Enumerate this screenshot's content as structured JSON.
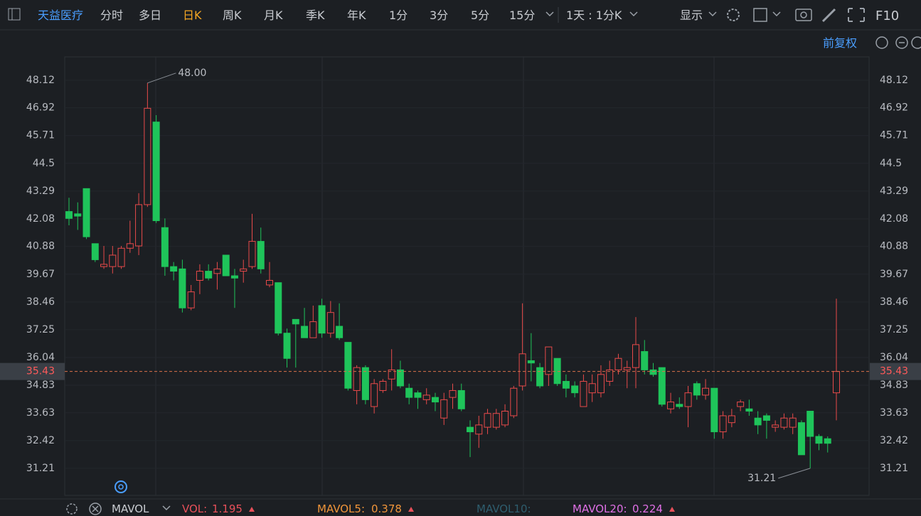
{
  "toolbar": {
    "stock": "天益医疗",
    "tabs": [
      "分时",
      "多日",
      "日K",
      "周K",
      "月K",
      "季K",
      "年K",
      "1分",
      "3分",
      "5分",
      "15分"
    ],
    "period": "1天 : 1分K",
    "display": "显示",
    "f10": "F10",
    "adjust": "前复权"
  },
  "chart_data": {
    "type": "candlestick",
    "up_color": "#e84a4a",
    "down_color": "#1fc45a",
    "open": [
      42.4,
      42.3,
      43.4,
      41.0,
      40.0,
      40.0,
      40.0,
      40.8,
      40.9,
      42.7,
      46.3,
      41.7,
      40.0,
      39.9,
      38.2,
      39.4,
      39.8,
      39.7,
      40.5,
      39.6,
      39.8,
      40.0,
      41.1,
      39.2,
      39.3,
      37.1,
      37.7,
      37.4,
      36.9,
      38.3,
      37.1,
      37.4,
      36.7,
      34.6,
      35.6,
      33.9,
      34.6,
      35.1,
      35.5,
      34.7,
      34.5,
      34.2,
      34.3,
      33.4,
      34.3,
      34.6,
      33.0,
      32.7,
      33.0,
      33.0,
      33.1,
      33.5,
      34.8,
      35.9,
      35.6,
      35.3,
      36.0,
      35.0,
      34.8,
      33.9,
      34.5,
      34.5,
      35.0,
      35.5,
      35.5,
      35.6,
      36.3,
      35.5,
      35.6,
      33.8,
      34.0,
      33.9,
      34.9,
      34.4,
      34.7,
      32.8,
      33.2,
      33.9,
      33.8,
      33.4,
      33.5,
      33.0,
      33.0,
      33.0,
      33.2,
      33.7,
      32.6,
      32.5,
      34.5
    ],
    "high": [
      43.0,
      42.8,
      43.4,
      41.0,
      40.9,
      40.9,
      40.9,
      42.0,
      43.2,
      48,
      46.6,
      42.1,
      40.2,
      40.3,
      39.2,
      40.1,
      40.1,
      40.2,
      40.5,
      39.9,
      40.3,
      42.3,
      41.7,
      40.2,
      39.3,
      37.3,
      37.7,
      38.2,
      38.3,
      38.6,
      38.5,
      38.4,
      36.7,
      35.7,
      35.7,
      35.1,
      35.1,
      36.4,
      35.9,
      34.9,
      34.6,
      34.7,
      34.5,
      34.5,
      34.9,
      34.9,
      33.3,
      33.5,
      33.8,
      33.8,
      34.0,
      34.8,
      38.4,
      37.1,
      35.8,
      36.5,
      36.0,
      35.3,
      35.0,
      35.3,
      35.3,
      35.7,
      35.9,
      36.2,
      35.9,
      37.8,
      36.8,
      35.8,
      35.6,
      34.5,
      34.3,
      34.8,
      35.0,
      35.1,
      34.7,
      33.7,
      33.8,
      34.2,
      34.2,
      33.7,
      33.6,
      33.3,
      33.6,
      33.6,
      33.3,
      33.7,
      32.7,
      32.6,
      38.6
    ],
    "low": [
      41.8,
      41.6,
      41.2,
      40.2,
      39.9,
      39.7,
      39.9,
      40.6,
      40.5,
      42.6,
      41.9,
      39.6,
      39.4,
      38.0,
      38.1,
      38.8,
      39.4,
      39.0,
      39.6,
      38.2,
      39.3,
      39.9,
      39.7,
      39.1,
      37.0,
      35.6,
      35.6,
      36.9,
      36.9,
      36.9,
      36.9,
      36.8,
      34.6,
      34.0,
      34.0,
      33.6,
      34.5,
      34.6,
      34.7,
      34.0,
      33.8,
      34.0,
      33.7,
      33.1,
      33.8,
      33.7,
      31.7,
      32.1,
      32.7,
      32.9,
      33.0,
      33.4,
      34.6,
      35.0,
      34.7,
      34.8,
      34.8,
      34.3,
      34.3,
      33.9,
      34.1,
      34.3,
      34.8,
      35.3,
      34.7,
      34.7,
      35.3,
      35.2,
      33.9,
      33.6,
      33.8,
      33.0,
      34.2,
      34.2,
      32.5,
      32.5,
      33.0,
      33.7,
      33.5,
      32.7,
      32.5,
      32.8,
      32.9,
      32.7,
      31.8,
      31.21,
      32.0,
      31.9,
      33.3
    ],
    "close": [
      42.1,
      42.2,
      41.3,
      40.3,
      40.1,
      40.5,
      40.8,
      41.0,
      42.7,
      46.9,
      42.0,
      40.0,
      39.8,
      38.2,
      38.9,
      39.8,
      39.5,
      39.9,
      39.6,
      39.5,
      39.9,
      41.1,
      39.9,
      39.4,
      37.1,
      36.0,
      37.5,
      36.9,
      37.6,
      37.1,
      38.0,
      36.9,
      34.7,
      35.6,
      34.2,
      34.9,
      35.0,
      35.5,
      34.8,
      34.3,
      34.3,
      34.4,
      34.1,
      34.2,
      34.6,
      33.8,
      32.8,
      33.1,
      33.6,
      33.6,
      33.7,
      34.7,
      36.2,
      35.8,
      34.8,
      36.5,
      34.9,
      34.7,
      34.5,
      35.0,
      34.9,
      35.3,
      35.5,
      36.0,
      35.6,
      36.6,
      35.5,
      35.3,
      34.0,
      34.1,
      33.9,
      34.5,
      34.4,
      34.7,
      32.8,
      33.5,
      33.5,
      34.1,
      33.7,
      33.1,
      33.3,
      33.1,
      33.4,
      33.4,
      31.8,
      32.6,
      32.3,
      32.3,
      35.43
    ],
    "ylim": [
      30.03,
      49.14
    ],
    "yticks": [
      48.12,
      46.92,
      45.71,
      44.5,
      43.29,
      42.08,
      40.88,
      39.67,
      38.46,
      37.25,
      36.04,
      34.83,
      33.63,
      32.42,
      31.21
    ],
    "last_price": 35.43,
    "annotations": [
      {
        "index": 9,
        "value": 48,
        "label": "48.00"
      },
      {
        "index": 85,
        "value": 31.21,
        "label": "31.21"
      }
    ]
  },
  "indicators": {
    "name": "MAVOL",
    "items": [
      {
        "name": "VOL:",
        "value": 1.195,
        "color": "#e8505a"
      },
      {
        "name": "MAVOL5:",
        "value": 0.378,
        "color": "#f0953a"
      },
      {
        "name": "MAVOL10:",
        "color": "#2e5d6e"
      },
      {
        "name": "MAVOL20:",
        "value": 0.224,
        "color": "#e070e6"
      }
    ]
  }
}
